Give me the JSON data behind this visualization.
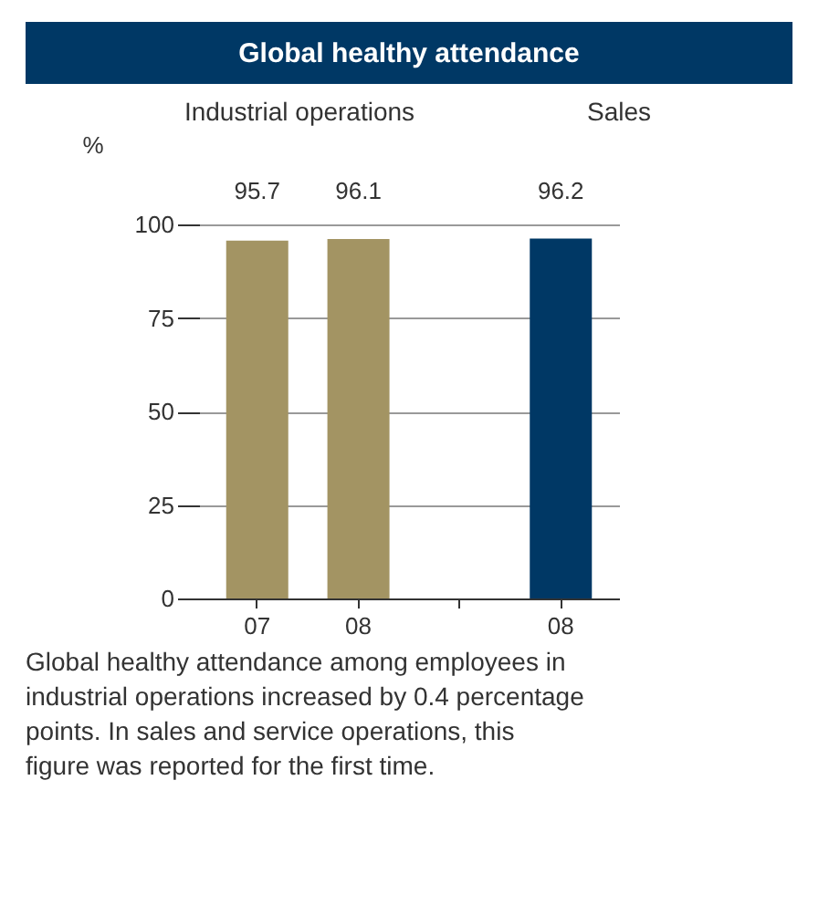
{
  "chart_data": {
    "type": "bar",
    "title": "Global healthy attendance",
    "ylabel": "%",
    "categories": [
      "07",
      "08",
      null,
      "08"
    ],
    "values": [
      95.7,
      96.1,
      null,
      96.2
    ],
    "colors": [
      "#a39463",
      "#a39463",
      "#a39463",
      "#003865"
    ],
    "ylim": [
      0,
      100
    ],
    "yticks": [
      0,
      25,
      50,
      75,
      100
    ],
    "grid": "y",
    "data_labels": true,
    "annotations": [
      "Industrial operations",
      "Sales",
      "Global healthy attendance among employees in industrial operations increased by 0.4 percentage points. In sales and service operations, this figure was reported for the first time."
    ]
  }
}
